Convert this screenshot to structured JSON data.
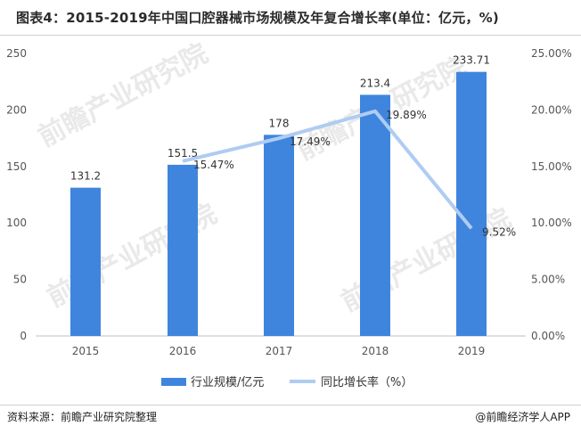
{
  "title": "图表4：2015-2019年中国口腔器械市场规模及年复合增长率(单位：亿元，%)",
  "watermark": "前瞻产业研究院",
  "footer": {
    "source": "资料来源：前瞻产业研究院整理",
    "brand": "@前瞻经济学人APP"
  },
  "colors": {
    "bar": "#3F85DE",
    "line": "#AFCCF2"
  },
  "chart_data": {
    "type": "bar",
    "categories": [
      "2015",
      "2016",
      "2017",
      "2018",
      "2019"
    ],
    "series": [
      {
        "name": "行业规模/亿元",
        "type": "bar",
        "axis": "left",
        "values": [
          131.2,
          151.5,
          178,
          213.4,
          233.71
        ],
        "labels": [
          "131.2",
          "151.5",
          "178",
          "213.4",
          "233.71"
        ]
      },
      {
        "name": "同比增长率（%）",
        "type": "line",
        "axis": "right",
        "values": [
          null,
          15.47,
          17.49,
          19.89,
          9.52
        ],
        "labels": [
          "",
          "15.47%",
          "17.49%",
          "19.89%",
          "9.52%"
        ]
      }
    ],
    "y_left": {
      "min": 0,
      "max": 250,
      "ticks": [
        0,
        50,
        100,
        150,
        200,
        250
      ]
    },
    "y_right": {
      "min": 0,
      "max": 25,
      "ticks": [
        "0.00%",
        "5.00%",
        "10.00%",
        "15.00%",
        "20.00%",
        "25.00%"
      ]
    },
    "legend_position": "bottom",
    "grid": false
  }
}
